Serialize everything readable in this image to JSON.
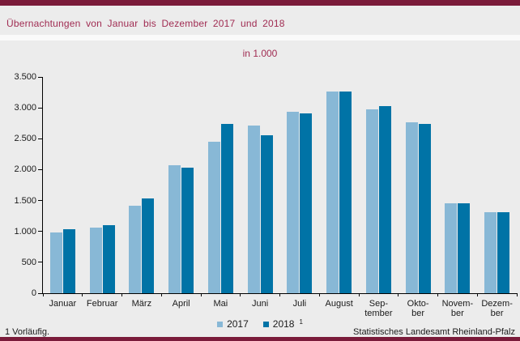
{
  "page": {
    "title": "Übernachtungen von Januar bis Dezember 2017 und 2018",
    "subtitle": "in 1.000",
    "footnote": "1 Vorläufig.",
    "source": "Statistisches Landesamt Rheinland-Pfalz"
  },
  "colors": {
    "accent_maroon": "#7a1b3a",
    "title_text": "#a02c52",
    "series_2017": "#88b8d6",
    "series_2018": "#0073a6",
    "background": "#ececec",
    "axis": "#000000"
  },
  "legend": {
    "items": [
      {
        "label": "2017",
        "color_key": "series_2017",
        "sup": ""
      },
      {
        "label": "2018",
        "color_key": "series_2018",
        "sup": "1"
      }
    ]
  },
  "chart_data": {
    "type": "bar",
    "title": "Übernachtungen von Januar bis Dezember 2017 und 2018",
    "subtitle": "in 1.000",
    "xlabel": "",
    "ylabel": "in 1.000",
    "ylim": [
      0,
      3500
    ],
    "grid": false,
    "legend_position": "bottom",
    "categories": [
      "Januar",
      "Februar",
      "März",
      "April",
      "Mai",
      "Juni",
      "Juli",
      "August",
      "September",
      "Oktober",
      "November",
      "Dezember"
    ],
    "category_label_lines": [
      [
        "Januar"
      ],
      [
        "Februar"
      ],
      [
        "März"
      ],
      [
        "April"
      ],
      [
        "Mai"
      ],
      [
        "Juni"
      ],
      [
        "Juli"
      ],
      [
        "August"
      ],
      [
        "Sep-",
        "tember"
      ],
      [
        "Okto-",
        "ber"
      ],
      [
        "Novem-",
        "ber"
      ],
      [
        "Dezem-",
        "ber"
      ]
    ],
    "y_ticks": [
      {
        "value": 3500,
        "label": "3.500"
      },
      {
        "value": 3000,
        "label": "3.000"
      },
      {
        "value": 2500,
        "label": "2.500"
      },
      {
        "value": 2000,
        "label": "2.000"
      },
      {
        "value": 1500,
        "label": "1.500"
      },
      {
        "value": 1000,
        "label": "1.000"
      },
      {
        "value": 500,
        "label": "500"
      },
      {
        "value": 0,
        "label": "0"
      }
    ],
    "series": [
      {
        "name": "2017",
        "color_key": "series_2017",
        "values": [
          980,
          1060,
          1410,
          2070,
          2450,
          2710,
          2930,
          3260,
          2970,
          2760,
          1460,
          1310
        ]
      },
      {
        "name": "2018",
        "color_key": "series_2018",
        "values": [
          1040,
          1100,
          1530,
          2030,
          2740,
          2560,
          2910,
          3260,
          3030,
          2740,
          1460,
          1310
        ]
      }
    ]
  }
}
